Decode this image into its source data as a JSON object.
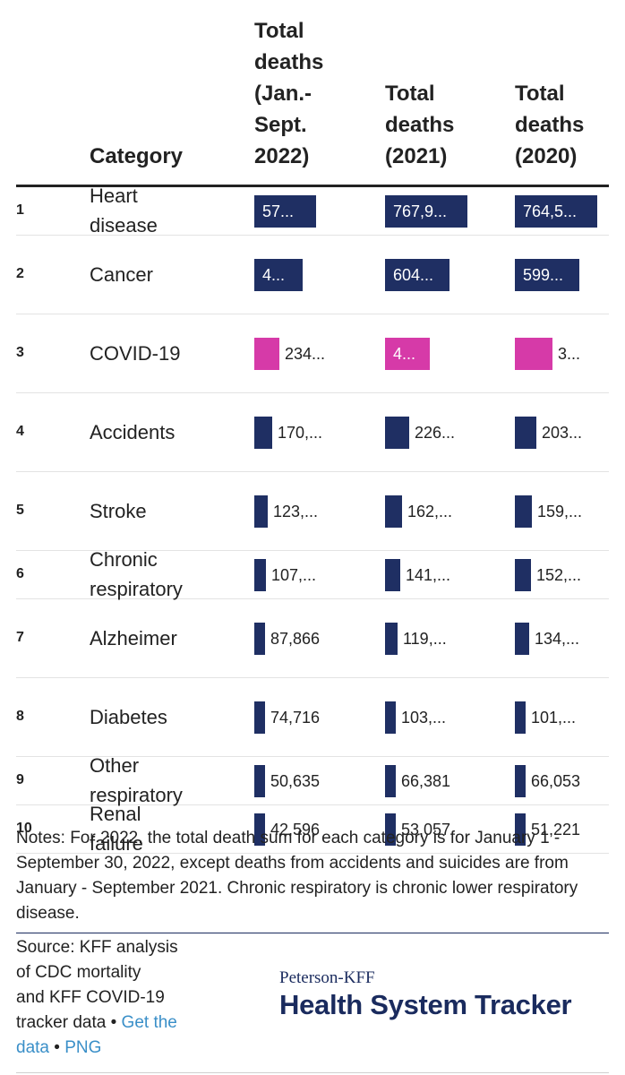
{
  "chart_data": {
    "type": "table",
    "columns": [
      "",
      "Category",
      "Total deaths (Jan.-Sept. 2022)",
      "Total deaths (2021)",
      "Total deaths (2020)"
    ],
    "column_header_lines": {
      "category": [
        "Category"
      ],
      "c2022": [
        "Total",
        "deaths",
        "(Jan.-",
        "Sept.",
        "2022)"
      ],
      "c2021": [
        "Total",
        "deaths",
        "(2021)"
      ],
      "c2020": [
        "Total",
        "deaths",
        "(2020)"
      ]
    },
    "rows": [
      {
        "rank": "1",
        "category": "Heart disease",
        "category_lines": [
          "Heart",
          "disease"
        ],
        "values": [
          575000,
          767900,
          764500
        ],
        "labels": [
          "57...",
          "767,9...",
          "764,5..."
        ]
      },
      {
        "rank": "2",
        "category": "Cancer",
        "category_lines": [
          "Cancer"
        ],
        "values": [
          450000,
          604000,
          599000
        ],
        "labels": [
          "4...",
          "604...",
          "599..."
        ]
      },
      {
        "rank": "3",
        "category": "COVID-19",
        "category_lines": [
          "COVID-19"
        ],
        "values": [
          234000,
          416000,
          350000
        ],
        "labels": [
          "234...",
          "4...",
          "3..."
        ]
      },
      {
        "rank": "4",
        "category": "Accidents",
        "category_lines": [
          "Accidents"
        ],
        "values": [
          170000,
          226000,
          203000
        ],
        "labels": [
          "170,...",
          "226...",
          "203..."
        ]
      },
      {
        "rank": "5",
        "category": "Stroke",
        "category_lines": [
          "Stroke"
        ],
        "values": [
          123000,
          162000,
          159000
        ],
        "labels": [
          "123,...",
          "162,...",
          "159,..."
        ]
      },
      {
        "rank": "6",
        "category": "Chronic respiratory",
        "category_lines": [
          "Chronic",
          "respiratory"
        ],
        "values": [
          107000,
          141000,
          152000
        ],
        "labels": [
          "107,...",
          "141,...",
          "152,..."
        ]
      },
      {
        "rank": "7",
        "category": "Alzheimer",
        "category_lines": [
          "Alzheimer"
        ],
        "values": [
          87866,
          119000,
          134000
        ],
        "labels": [
          "87,866",
          "119,...",
          "134,..."
        ]
      },
      {
        "rank": "8",
        "category": "Diabetes",
        "category_lines": [
          "Diabetes"
        ],
        "values": [
          74716,
          103000,
          101000
        ],
        "labels": [
          "74,716",
          "103,...",
          "101,..."
        ]
      },
      {
        "rank": "9",
        "category": "Other respiratory",
        "category_lines": [
          "Other",
          "respiratory"
        ],
        "values": [
          50635,
          66381,
          66053
        ],
        "labels": [
          "50,635",
          "66,381",
          "66,053"
        ]
      },
      {
        "rank": "10",
        "category": "Renal failure",
        "category_lines": [
          "Renal",
          "failure"
        ],
        "values": [
          42596,
          53057,
          51221
        ],
        "labels": [
          "42,596",
          "53,057",
          "51,221"
        ]
      }
    ],
    "bar_max": 767900,
    "colors": {
      "default": "#1f2f63",
      "highlight": "#d63aa8",
      "text_on_bar": "#ffffff",
      "text_off_bar": "#222222"
    },
    "highlight_category": "COVID-19"
  },
  "notes": "Notes: For 2022, the total death sum for each category is for January 1 - September 30, 2022, except deaths from accidents and suicides are from January - September 2021. Chronic respiratory is chronic lower respiratory disease.",
  "source": {
    "lines": [
      "Source: KFF analysis",
      "of CDC mortality",
      "and KFF COVID-19"
    ],
    "last_prefix": "tracker data",
    "separator": " • ",
    "get_the_data": "Get the data",
    "png": "PNG"
  },
  "logo": {
    "line1": "Peterson-KFF",
    "line2": "Health System Tracker"
  }
}
